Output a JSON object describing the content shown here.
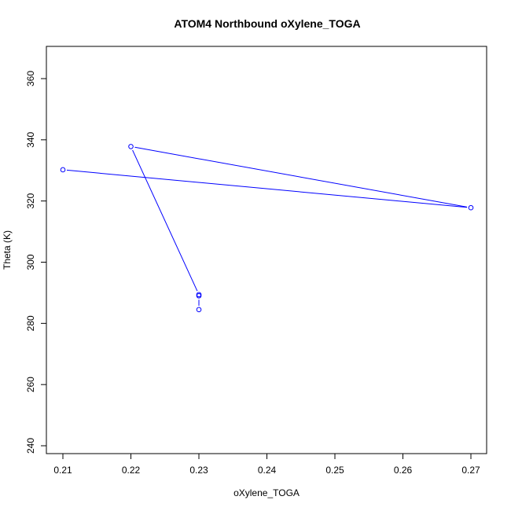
{
  "chart_data": {
    "type": "line",
    "title": "ATOM4 Northbound oXylene_TOGA",
    "xlabel": "oXylene_TOGA",
    "ylabel": "Theta (K)",
    "xlim": [
      0.21,
      0.27
    ],
    "ylim": [
      240,
      360
    ],
    "xticks": [
      "0.21",
      "0.22",
      "0.23",
      "0.24",
      "0.25",
      "0.26",
      "0.27"
    ],
    "yticks": [
      "240",
      "260",
      "280",
      "300",
      "320",
      "340",
      "360"
    ],
    "grid": false,
    "series": [
      {
        "color": "#0000ff",
        "marker": "open-circle",
        "points": [
          {
            "x": 0.23,
            "y": 284.5
          },
          {
            "x": 0.23,
            "y": 289.0
          },
          {
            "x": 0.23,
            "y": 289.4
          },
          {
            "x": 0.22,
            "y": 337.8
          },
          {
            "x": 0.27,
            "y": 317.8
          },
          {
            "x": 0.21,
            "y": 330.2
          }
        ]
      }
    ]
  }
}
